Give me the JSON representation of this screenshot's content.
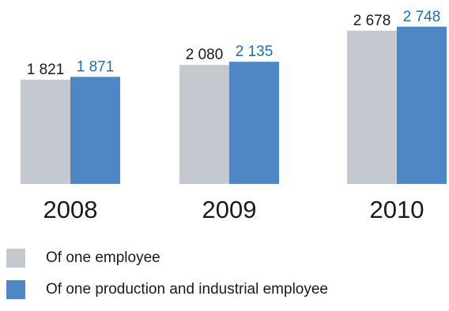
{
  "chart_data": {
    "type": "bar",
    "categories": [
      "2008",
      "2009",
      "2010"
    ],
    "series": [
      {
        "name": "Of one employee",
        "values": [
          1821,
          2080,
          2678
        ],
        "labels": [
          "1 821",
          "2 080",
          "2 678"
        ],
        "color": "#c4c9cf",
        "label_color": "#1a1a1a"
      },
      {
        "name": "Of one production and industrial employee",
        "values": [
          1871,
          2135,
          2748
        ],
        "labels": [
          "1 871",
          "2 135",
          "2 748"
        ],
        "color": "#4f86c6",
        "label_color": "#1f6db3"
      }
    ],
    "ylim": [
      0,
      2800
    ],
    "grid": false,
    "legend_position": "bottom-left"
  }
}
